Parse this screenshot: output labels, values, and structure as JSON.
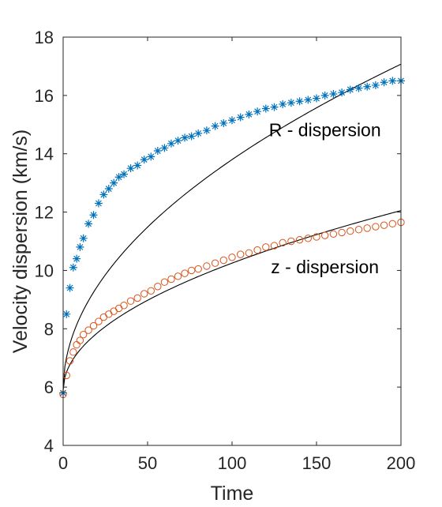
{
  "chart_data": {
    "type": "scatter",
    "title": "",
    "xlabel": "Time",
    "ylabel": "Velocity dispersion (km/s)",
    "xlim": [
      0,
      200
    ],
    "ylim": [
      4,
      18
    ],
    "xticks": [
      "0",
      "50",
      "100",
      "150",
      "200"
    ],
    "yticks": [
      "4",
      "6",
      "8",
      "10",
      "12",
      "14",
      "16",
      "18"
    ],
    "grid": false,
    "legend": "none",
    "annotations": [
      {
        "text": "R - dispersion",
        "x": 155,
        "y": 14.6
      },
      {
        "text": "z - dispersion",
        "x": 155,
        "y": 9.9
      }
    ],
    "series": [
      {
        "marker": "asterisk",
        "color": "#0072BD",
        "x": [
          0,
          2,
          4,
          6,
          8,
          10,
          12,
          15,
          18,
          21,
          24,
          27,
          30,
          33,
          36,
          40,
          44,
          48,
          52,
          56,
          60,
          64,
          68,
          72,
          76,
          80,
          85,
          90,
          95,
          100,
          105,
          110,
          115,
          120,
          125,
          130,
          135,
          140,
          145,
          150,
          155,
          160,
          165,
          170,
          175,
          180,
          185,
          190,
          195,
          200
        ],
        "y": [
          5.8,
          8.5,
          9.4,
          10.1,
          10.4,
          10.8,
          11.1,
          11.6,
          11.9,
          12.3,
          12.6,
          12.8,
          13.0,
          13.2,
          13.3,
          13.5,
          13.6,
          13.8,
          13.9,
          14.1,
          14.2,
          14.35,
          14.45,
          14.55,
          14.6,
          14.7,
          14.8,
          14.95,
          15.05,
          15.15,
          15.25,
          15.35,
          15.45,
          15.55,
          15.6,
          15.7,
          15.75,
          15.8,
          15.85,
          15.9,
          16.0,
          16.05,
          16.1,
          16.2,
          16.25,
          16.3,
          16.35,
          16.45,
          16.5,
          16.5
        ]
      },
      {
        "marker": "circle",
        "color": "#D95319",
        "x": [
          0,
          2,
          4,
          6,
          8,
          10,
          12,
          15,
          18,
          21,
          24,
          27,
          30,
          33,
          36,
          40,
          44,
          48,
          52,
          56,
          60,
          64,
          68,
          72,
          76,
          80,
          85,
          90,
          95,
          100,
          105,
          110,
          115,
          120,
          125,
          130,
          135,
          140,
          145,
          150,
          155,
          160,
          165,
          170,
          175,
          180,
          185,
          190,
          195,
          200
        ],
        "y": [
          5.75,
          6.4,
          6.9,
          7.2,
          7.45,
          7.6,
          7.8,
          7.95,
          8.1,
          8.25,
          8.4,
          8.5,
          8.6,
          8.7,
          8.8,
          8.95,
          9.05,
          9.2,
          9.3,
          9.45,
          9.6,
          9.7,
          9.8,
          9.9,
          10.0,
          10.05,
          10.15,
          10.25,
          10.35,
          10.45,
          10.55,
          10.6,
          10.7,
          10.8,
          10.85,
          10.95,
          11.0,
          11.05,
          11.1,
          11.15,
          11.2,
          11.25,
          11.3,
          11.35,
          11.4,
          11.45,
          11.5,
          11.55,
          11.6,
          11.65
        ]
      }
    ],
    "fit_curves": [
      {
        "color": "#000000",
        "x0": 0,
        "y0": 5.9,
        "a": 0.79,
        "p": 0.5
      },
      {
        "color": "#000000",
        "x0": 0,
        "y0": 5.9,
        "a": 0.435,
        "p": 0.5
      }
    ]
  }
}
